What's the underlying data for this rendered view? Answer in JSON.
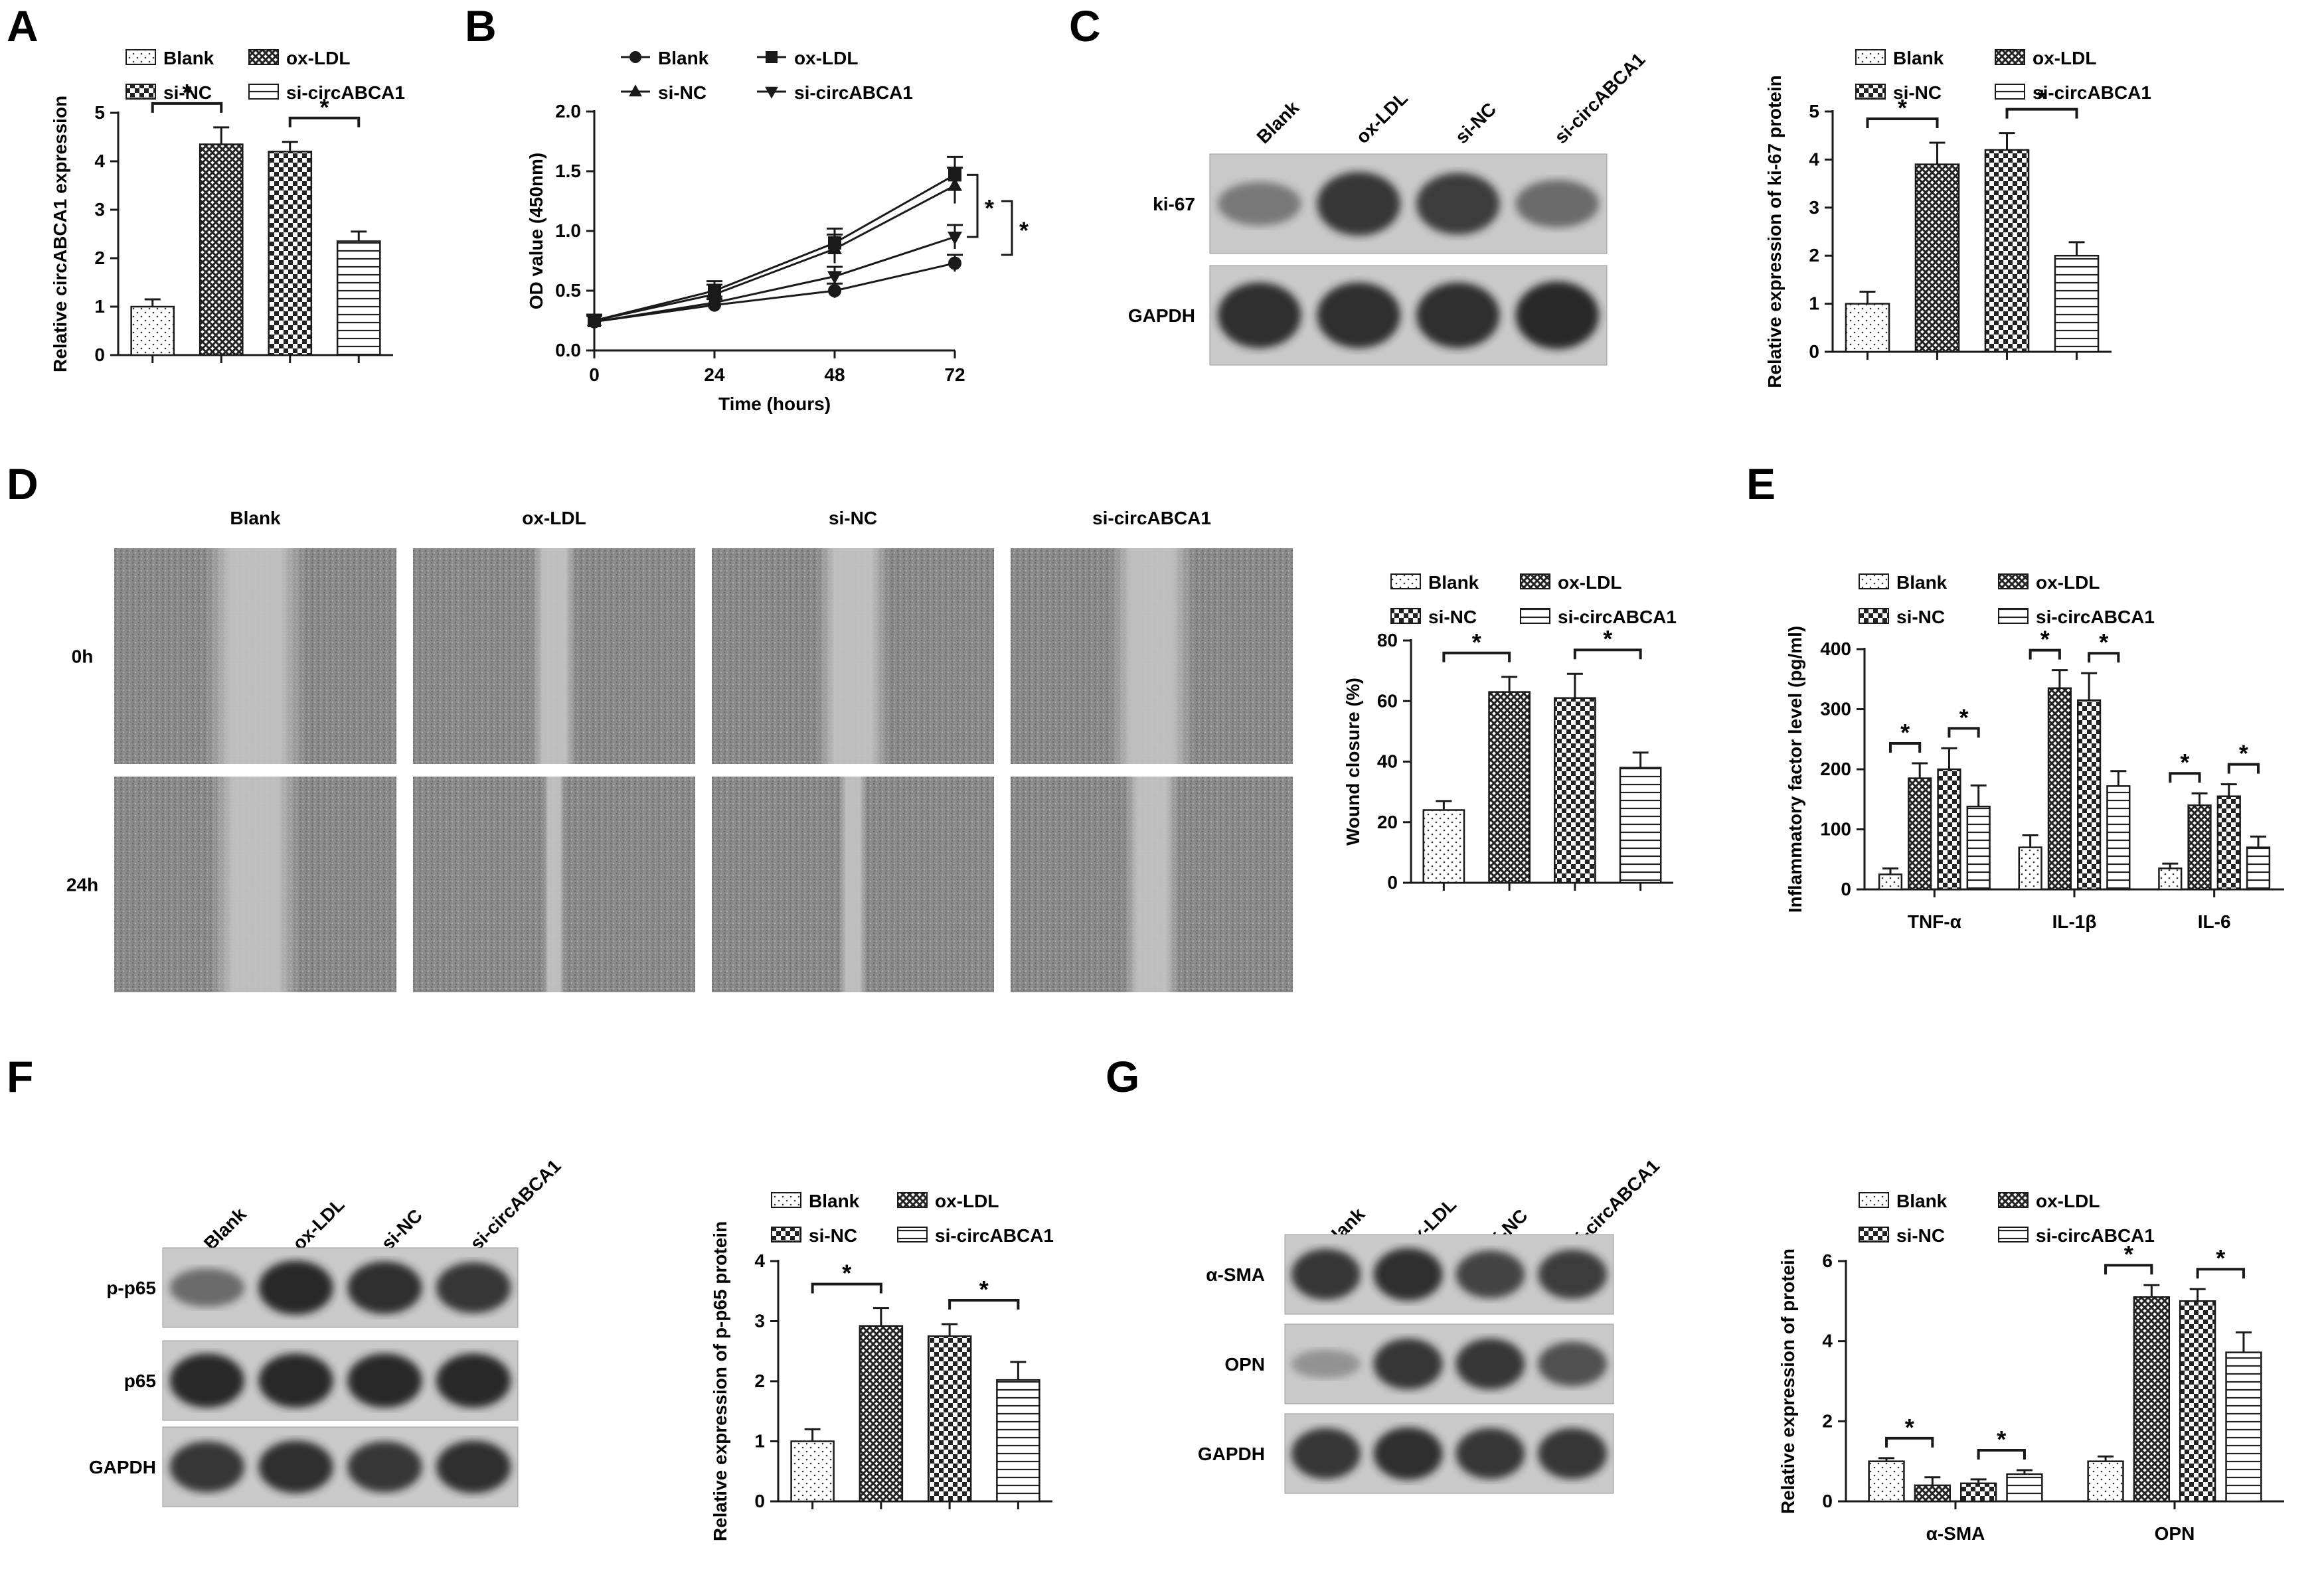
{
  "groups": [
    "Blank",
    "ox-LDL",
    "si-NC",
    "si-circABCA1"
  ],
  "colors": {
    "ink": "#1a1a1a",
    "blot_bg": "#c9c9c9",
    "band": "#222222",
    "scratch_bg": "#9a9a9a"
  },
  "star": "*",
  "panels": {
    "A": {
      "letter": "A"
    },
    "B": {
      "letter": "B"
    },
    "C": {
      "letter": "C"
    },
    "D": {
      "letter": "D"
    },
    "E": {
      "letter": "E"
    },
    "F": {
      "letter": "F"
    },
    "G": {
      "letter": "G"
    }
  },
  "blots": {
    "C": {
      "rows": [
        "ki-67",
        "GAPDH"
      ],
      "intensity": [
        [
          0.35,
          0.85,
          0.8,
          0.45
        ],
        [
          0.9,
          0.9,
          0.9,
          0.95
        ]
      ]
    },
    "F": {
      "rows": [
        "p-p65",
        "p65",
        "GAPDH"
      ],
      "intensity": [
        [
          0.45,
          0.95,
          0.9,
          0.85
        ],
        [
          0.95,
          0.95,
          0.95,
          0.95
        ],
        [
          0.85,
          0.9,
          0.85,
          0.9
        ]
      ]
    },
    "G": {
      "rows": [
        "α-SMA",
        "OPN",
        "GAPDH"
      ],
      "intensity": [
        [
          0.85,
          0.9,
          0.75,
          0.8
        ],
        [
          0.15,
          0.85,
          0.85,
          0.65
        ],
        [
          0.85,
          0.9,
          0.85,
          0.85
        ]
      ]
    }
  },
  "scratch": {
    "rows": [
      "0h",
      "24h"
    ],
    "gap": [
      [
        0.18,
        0.08,
        0.13,
        0.15
      ],
      [
        0.16,
        0.04,
        0.05,
        0.1
      ]
    ]
  },
  "chart_data": [
    {
      "id": "A",
      "type": "bar",
      "categories": [
        "Blank",
        "ox-LDL",
        "si-NC",
        "si-circABCA1"
      ],
      "values": [
        1.0,
        4.35,
        4.2,
        2.35
      ],
      "errors": [
        0.15,
        0.35,
        0.2,
        0.2
      ],
      "ylabel": "Relative circABCA1 expression",
      "ylim": [
        0,
        5
      ],
      "yticks": [
        "0",
        "1",
        "2",
        "3",
        "4",
        "5"
      ],
      "sig": [
        [
          0,
          1
        ],
        [
          2,
          3
        ]
      ]
    },
    {
      "id": "B",
      "type": "line",
      "x": [
        0,
        24,
        48,
        72
      ],
      "xlabel": "Time (hours)",
      "ylabel": "OD value (450nm)",
      "xlim": [
        0,
        72
      ],
      "ylim": [
        0,
        2.0
      ],
      "xticks": [
        "0",
        "24",
        "48",
        "72"
      ],
      "yticks": [
        "0.0",
        "0.5",
        "1.0",
        "1.5",
        "2.0"
      ],
      "series": [
        {
          "name": "Blank",
          "marker": "circle",
          "values": [
            0.24,
            0.38,
            0.5,
            0.73
          ],
          "errors": [
            0.05,
            0.05,
            0.06,
            0.07
          ]
        },
        {
          "name": "ox-LDL",
          "marker": "square",
          "values": [
            0.25,
            0.5,
            0.9,
            1.47
          ],
          "errors": [
            0.05,
            0.08,
            0.12,
            0.15
          ]
        },
        {
          "name": "si-NC",
          "marker": "triangle",
          "values": [
            0.25,
            0.47,
            0.85,
            1.38
          ],
          "errors": [
            0.05,
            0.08,
            0.12,
            0.15
          ]
        },
        {
          "name": "si-circABCA1",
          "marker": "triangle-down",
          "values": [
            0.24,
            0.4,
            0.62,
            0.95
          ],
          "errors": [
            0.05,
            0.05,
            0.08,
            0.1
          ]
        }
      ]
    },
    {
      "id": "C",
      "type": "bar",
      "categories": [
        "Blank",
        "ox-LDL",
        "si-NC",
        "si-circABCA1"
      ],
      "values": [
        1.0,
        3.9,
        4.2,
        2.0
      ],
      "errors": [
        0.25,
        0.45,
        0.35,
        0.28
      ],
      "ylabel": "Relative expression of ki-67 protein",
      "ylim": [
        0,
        5
      ],
      "yticks": [
        "0",
        "1",
        "2",
        "3",
        "4",
        "5"
      ],
      "sig": [
        [
          0,
          1
        ],
        [
          2,
          3
        ]
      ]
    },
    {
      "id": "D",
      "type": "bar",
      "categories": [
        "Blank",
        "ox-LDL",
        "si-NC",
        "si-circABCA1"
      ],
      "values": [
        24,
        63,
        61,
        38
      ],
      "errors": [
        3,
        5,
        8,
        5
      ],
      "ylabel": "Wound closure (%)",
      "ylim": [
        0,
        80
      ],
      "yticks": [
        "0",
        "20",
        "40",
        "60",
        "80"
      ],
      "sig": [
        [
          0,
          1
        ],
        [
          2,
          3
        ]
      ]
    },
    {
      "id": "E",
      "type": "bar",
      "categories": [
        "TNF-α",
        "IL-1β",
        "IL-6"
      ],
      "ylabel": "Inflammatory factor level (pg/ml)",
      "ylim": [
        0,
        400
      ],
      "yticks": [
        "0",
        "100",
        "200",
        "300",
        "400"
      ],
      "series": [
        {
          "name": "Blank",
          "values": [
            25,
            70,
            35
          ],
          "errors": [
            10,
            20,
            8
          ]
        },
        {
          "name": "ox-LDL",
          "values": [
            185,
            335,
            140
          ],
          "errors": [
            25,
            30,
            20
          ]
        },
        {
          "name": "si-NC",
          "values": [
            200,
            315,
            155
          ],
          "errors": [
            35,
            45,
            20
          ]
        },
        {
          "name": "si-circABCA1",
          "values": [
            138,
            172,
            70
          ],
          "errors": [
            35,
            25,
            18
          ]
        }
      ],
      "sig": [
        [
          0,
          1
        ],
        [
          2,
          3
        ]
      ]
    },
    {
      "id": "F",
      "type": "bar",
      "categories": [
        "Blank",
        "ox-LDL",
        "si-NC",
        "si-circABCA1"
      ],
      "values": [
        1.0,
        2.92,
        2.75,
        2.02
      ],
      "errors": [
        0.2,
        0.3,
        0.2,
        0.3
      ],
      "ylabel": "Relative expression of p-p65 protein",
      "ylim": [
        0,
        4
      ],
      "yticks": [
        "0",
        "1",
        "2",
        "3",
        "4"
      ],
      "sig": [
        [
          0,
          1
        ],
        [
          2,
          3
        ]
      ]
    },
    {
      "id": "G",
      "type": "bar",
      "categories": [
        "α-SMA",
        "OPN"
      ],
      "ylabel": "Relative expression of protein",
      "ylim": [
        0,
        6
      ],
      "yticks": [
        "0",
        "2",
        "4",
        "6"
      ],
      "series": [
        {
          "name": "Blank",
          "values": [
            1.0,
            1.0
          ],
          "errors": [
            0.08,
            0.12
          ]
        },
        {
          "name": "ox-LDL",
          "values": [
            0.4,
            5.1
          ],
          "errors": [
            0.2,
            0.3
          ]
        },
        {
          "name": "si-NC",
          "values": [
            0.45,
            5.0
          ],
          "errors": [
            0.1,
            0.3
          ]
        },
        {
          "name": "si-circABCA1",
          "values": [
            0.68,
            3.72
          ],
          "errors": [
            0.1,
            0.5
          ]
        }
      ],
      "sig": [
        [
          0,
          1
        ],
        [
          2,
          3
        ]
      ]
    }
  ]
}
